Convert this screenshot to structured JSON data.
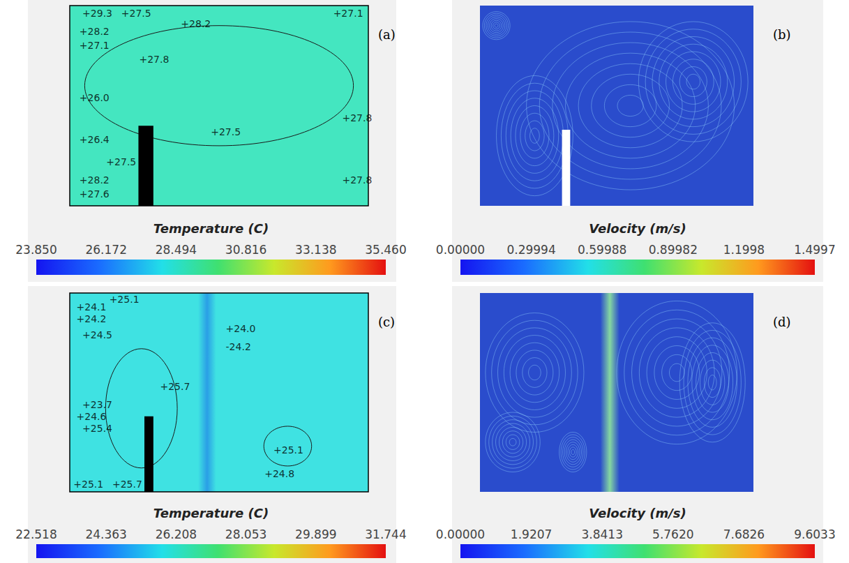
{
  "chart_data": [
    {
      "type": "contour",
      "label": "(a)",
      "xlim": [
        0,
        1
      ],
      "ylim": [
        0,
        1
      ],
      "tick_labels": false,
      "colorbar": {
        "title": "Temperature (C)",
        "range": [
          23.85,
          35.46
        ],
        "ticks": [
          {
            "value": 23.85,
            "label": "23.850"
          },
          26.172,
          28.494,
          30.816,
          33.138,
          {
            "value": 35.46,
            "label": "35.460"
          }
        ]
      },
      "annotations": [
        {
          "text": "+29.3",
          "x": 0.04,
          "y": 0.96
        },
        {
          "text": "+27.5",
          "x": 0.17,
          "y": 0.96
        },
        {
          "text": "+28.2",
          "x": 0.37,
          "y": 0.91
        },
        {
          "text": "+27.1",
          "x": 0.88,
          "y": 0.96
        },
        {
          "text": "+28.2",
          "x": 0.03,
          "y": 0.87
        },
        {
          "text": "+27.1",
          "x": 0.03,
          "y": 0.8
        },
        {
          "text": "+27.8",
          "x": 0.23,
          "y": 0.73
        },
        {
          "text": "+26.0",
          "x": 0.03,
          "y": 0.54
        },
        {
          "text": "+27.8",
          "x": 0.91,
          "y": 0.44
        },
        {
          "text": "+26.4",
          "x": 0.03,
          "y": 0.33
        },
        {
          "text": "+27.5",
          "x": 0.47,
          "y": 0.37
        },
        {
          "text": "+27.5",
          "x": 0.12,
          "y": 0.22
        },
        {
          "text": "+27.8",
          "x": 0.91,
          "y": 0.13
        },
        {
          "text": "+28.2",
          "x": 0.03,
          "y": 0.13
        },
        {
          "text": "+27.6",
          "x": 0.03,
          "y": 0.06
        }
      ]
    },
    {
      "type": "streamline",
      "label": "(b)",
      "xlim": [
        0,
        1
      ],
      "ylim": [
        0,
        1
      ],
      "tick_labels": false,
      "colorbar": {
        "title": "Velocity (m/s)",
        "range": [
          0,
          1.4997
        ],
        "ticks": [
          {
            "value": 0,
            "label": "0.00000"
          },
          0.29994,
          0.59988,
          0.89982,
          1.1998,
          1.4997
        ]
      }
    },
    {
      "type": "contour",
      "label": "(c)",
      "xlim": [
        0,
        1
      ],
      "ylim": [
        0,
        1
      ],
      "tick_labels": false,
      "colorbar": {
        "title": "Temperature (C)",
        "range": [
          22.518,
          31.744
        ],
        "ticks": [
          22.518,
          24.363,
          26.208,
          28.053,
          29.899,
          31.744
        ]
      },
      "annotations": [
        {
          "text": "+25.1",
          "x": 0.13,
          "y": 0.97
        },
        {
          "text": "+24.1",
          "x": 0.02,
          "y": 0.93
        },
        {
          "text": "+24.2",
          "x": 0.02,
          "y": 0.87
        },
        {
          "text": "+24.5",
          "x": 0.04,
          "y": 0.79
        },
        {
          "text": "+24.0",
          "x": 0.52,
          "y": 0.82
        },
        {
          "text": "-24.2",
          "x": 0.52,
          "y": 0.73
        },
        {
          "text": "+25.7",
          "x": 0.3,
          "y": 0.53
        },
        {
          "text": "+23.7",
          "x": 0.04,
          "y": 0.44
        },
        {
          "text": "+24.6",
          "x": 0.02,
          "y": 0.38
        },
        {
          "text": "+25.4",
          "x": 0.04,
          "y": 0.32
        },
        {
          "text": "+25.1",
          "x": 0.68,
          "y": 0.21
        },
        {
          "text": "+24.8",
          "x": 0.65,
          "y": 0.09
        },
        {
          "text": "+25.1",
          "x": 0.01,
          "y": 0.04
        },
        {
          "text": "+25.7",
          "x": 0.14,
          "y": 0.04
        }
      ]
    },
    {
      "type": "streamline",
      "label": "(d)",
      "xlim": [
        0,
        1
      ],
      "ylim": [
        0,
        1
      ],
      "tick_labels": false,
      "colorbar": {
        "title": "Velocity (m/s)",
        "range": [
          0,
          9.6033
        ],
        "ticks": [
          {
            "value": 0,
            "label": "0.00000"
          },
          1.9207,
          3.8413,
          {
            "value": 5.762,
            "label": "5.7620"
          },
          7.6826,
          9.6033
        ]
      }
    }
  ]
}
